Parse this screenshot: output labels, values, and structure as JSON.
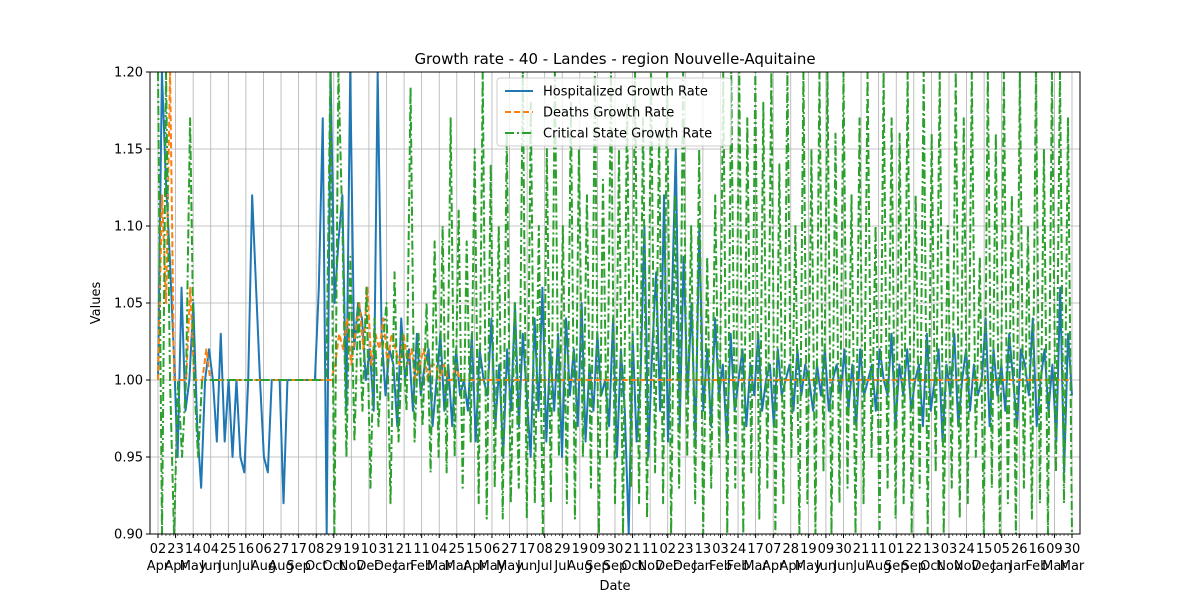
{
  "chart_data": {
    "type": "line",
    "title": "Growth rate - 40 - Landes - region Nouvelle-Aquitaine",
    "xlabel": "Date",
    "ylabel": "Values",
    "ylim": [
      0.9,
      1.2
    ],
    "yticks": [
      "0.90",
      "0.95",
      "1.00",
      "1.05",
      "1.10",
      "1.15",
      "1.20"
    ],
    "grid": true,
    "legend_position": "top-center",
    "x_tick_labels": [
      {
        "day": "02",
        "month": "Apr"
      },
      {
        "day": "23",
        "month": "Apr"
      },
      {
        "day": "14",
        "month": "May"
      },
      {
        "day": "04",
        "month": "Jun"
      },
      {
        "day": "25",
        "month": "Jun"
      },
      {
        "day": "16",
        "month": "Jul"
      },
      {
        "day": "06",
        "month": "Aug"
      },
      {
        "day": "27",
        "month": "Aug"
      },
      {
        "day": "17",
        "month": "Sep"
      },
      {
        "day": "08",
        "month": "Oct"
      },
      {
        "day": "29",
        "month": "Oct"
      },
      {
        "day": "19",
        "month": "Nov"
      },
      {
        "day": "10",
        "month": "Dec"
      },
      {
        "day": "31",
        "month": "Dec"
      },
      {
        "day": "21",
        "month": "Jan"
      },
      {
        "day": "11",
        "month": "Feb"
      },
      {
        "day": "04",
        "month": "Mar"
      },
      {
        "day": "25",
        "month": "Mar"
      },
      {
        "day": "15",
        "month": "Apr"
      },
      {
        "day": "06",
        "month": "May"
      },
      {
        "day": "27",
        "month": "May"
      },
      {
        "day": "17",
        "month": "Jun"
      },
      {
        "day": "08",
        "month": "Jul"
      },
      {
        "day": "29",
        "month": "Jul"
      },
      {
        "day": "19",
        "month": "Aug"
      },
      {
        "day": "09",
        "month": "Sep"
      },
      {
        "day": "30",
        "month": "Sep"
      },
      {
        "day": "21",
        "month": "Oct"
      },
      {
        "day": "11",
        "month": "Nov"
      },
      {
        "day": "02",
        "month": "Dec"
      },
      {
        "day": "23",
        "month": "Dec"
      },
      {
        "day": "13",
        "month": "Jan"
      },
      {
        "day": "03",
        "month": "Feb"
      },
      {
        "day": "24",
        "month": "Feb"
      },
      {
        "day": "17",
        "month": "Mar"
      },
      {
        "day": "07",
        "month": "Apr"
      },
      {
        "day": "28",
        "month": "Apr"
      },
      {
        "day": "19",
        "month": "May"
      },
      {
        "day": "09",
        "month": "Jun"
      },
      {
        "day": "30",
        "month": "Jun"
      },
      {
        "day": "21",
        "month": "Jul"
      },
      {
        "day": "11",
        "month": "Aug"
      },
      {
        "day": "01",
        "month": "Sep"
      },
      {
        "day": "22",
        "month": "Sep"
      },
      {
        "day": "13",
        "month": "Oct"
      },
      {
        "day": "03",
        "month": "Nov"
      },
      {
        "day": "24",
        "month": "Nov"
      },
      {
        "day": "15",
        "month": "Dec"
      },
      {
        "day": "05",
        "month": "Jan"
      },
      {
        "day": "26",
        "month": "Jan"
      },
      {
        "day": "16",
        "month": "Feb"
      },
      {
        "day": "09",
        "month": "Mar"
      },
      {
        "day": "30",
        "month": "Mar"
      }
    ],
    "series": [
      {
        "name": "Hospitalized Growth Rate",
        "color": "#1f77b4",
        "style": "solid",
        "values": [
          1.0,
          1.2,
          1.13,
          1.08,
          1.02,
          0.95,
          1.06,
          0.98,
          1.0,
          1.05,
          0.97,
          0.93,
          1.0,
          1.02,
          1.0,
          0.96,
          1.03,
          0.96,
          1.0,
          0.95,
          1.0,
          0.95,
          0.94,
          1.0,
          1.12,
          1.06,
          1.0,
          0.95,
          0.94,
          1.0,
          1.0,
          1.0,
          0.92,
          1.0,
          1.0,
          1.0,
          1.0,
          1.0,
          1.0,
          1.0,
          1.0,
          1.06,
          1.17,
          0.9,
          1.2,
          1.05,
          1.09,
          1.12,
          0.98,
          1.2,
          1.02,
          1.05,
          1.04,
          1.0,
          1.02,
          0.98,
          1.2,
          1.03,
          0.99,
          1.02,
          1.01,
          0.97,
          1.04,
          1.0,
          1.02,
          0.98,
          1.03,
          0.99,
          1.01,
          1.02,
          0.97,
          1.0,
          1.03,
          0.98,
          1.01,
          0.97,
          1.02,
          0.99,
          1.0,
          0.98,
          1.03,
          0.96,
          1.02,
          1.0,
          0.99,
          1.04,
          0.97,
          1.01,
          0.95,
          1.02,
          0.98,
          1.05,
          0.97,
          1.03,
          0.99,
          0.95,
          1.04,
          0.98,
          1.06,
          0.96,
          1.02,
          0.98,
          1.03,
          0.95,
          1.04,
          0.99,
          1.02,
          0.97,
          1.05,
          0.96,
          1.01,
          0.98,
          1.03,
          0.99,
          1.0,
          0.97,
          1.04,
          0.95,
          1.02,
          0.98,
          0.9,
          1.03,
          0.96,
          1.0,
          1.1,
          0.95,
          1.02,
          1.07,
          0.98,
          1.12,
          0.96,
          1.05,
          1.15,
          0.97,
          1.08,
          0.99,
          1.05,
          0.96,
          1.1,
          0.98,
          1.02,
          0.97,
          1.04,
          0.99,
          1.01,
          0.96,
          1.03,
          0.98,
          1.0,
          1.02,
          0.97,
          1.01,
          0.99,
          1.03,
          0.98,
          1.0,
          1.01,
          0.97,
          1.02,
          0.99,
          1.0,
          1.01,
          0.98,
          1.02,
          0.99,
          1.01,
          1.0,
          0.98,
          1.01,
          0.99,
          1.02,
          0.98,
          1.0,
          1.01,
          0.99,
          1.02,
          0.98,
          1.01,
          0.97,
          1.02,
          0.99,
          1.0,
          1.01,
          0.98,
          1.02,
          1.0,
          0.99,
          1.03,
          0.97,
          1.01,
          0.99,
          1.02,
          0.98,
          1.0,
          1.01,
          0.97,
          1.03,
          0.98,
          1.0,
          1.02,
          0.96,
          1.01,
          0.99,
          1.03,
          0.97,
          1.0,
          1.02,
          0.98,
          1.01,
          0.99,
          1.0,
          1.04,
          0.97,
          1.02,
          0.99,
          1.01,
          0.98,
          1.03,
          1.0,
          0.97,
          1.02,
          1.01,
          0.99,
          1.04,
          0.97,
          1.0,
          1.02,
          0.98,
          1.01,
          0.96,
          1.06,
          0.94,
          1.03,
          0.99
        ],
        "note_x_span": "same dates as x_tick_labels, evenly spaced"
      },
      {
        "name": "Deaths Growth Rate",
        "color": "#ff7f0e",
        "style": "dashed",
        "values": [
          1.0,
          1.12,
          1.05,
          1.2,
          1.0,
          1.0,
          1.0,
          1.0,
          1.06,
          1.0,
          1.0,
          1.0,
          1.02,
          1.0,
          1.0,
          1.0,
          1.0,
          1.0,
          1.0,
          1.0,
          1.0,
          1.0,
          1.0,
          1.0,
          1.0,
          1.0,
          1.0,
          1.0,
          1.0,
          1.0,
          1.0,
          1.0,
          1.0,
          1.0,
          1.0,
          1.0,
          1.0,
          1.0,
          1.0,
          1.0,
          1.0,
          1.0,
          1.0,
          1.0,
          1.01,
          1.03,
          1.02,
          1.04,
          1.01,
          1.03,
          1.05,
          1.02,
          1.06,
          1.01,
          1.03,
          1.02,
          1.04,
          1.01,
          1.03,
          1.02,
          1.01,
          1.03,
          1.01,
          1.02,
          1.0,
          1.01,
          1.02,
          1.0,
          1.01,
          1.01,
          1.0,
          1.01,
          1.0,
          1.0,
          1.01,
          1.0,
          1.0,
          1.0,
          1.0,
          1.0,
          1.0,
          1.0,
          1.0,
          1.0,
          1.0,
          1.0,
          1.0,
          1.0,
          1.0,
          1.0,
          1.0,
          1.0,
          1.0,
          1.0,
          1.0,
          1.0,
          1.0,
          1.0,
          1.0,
          1.0,
          1.0,
          1.0,
          1.0,
          1.0,
          1.0,
          1.0,
          1.0,
          1.0,
          1.0,
          1.0,
          1.0,
          1.0,
          1.0,
          1.0,
          1.0,
          1.0,
          1.0,
          1.0,
          1.0,
          1.0,
          1.0,
          1.0,
          1.0,
          1.0,
          1.0,
          1.0,
          1.0,
          1.0,
          1.0,
          1.0,
          1.0,
          1.0,
          1.0,
          1.0,
          1.0,
          1.0,
          1.0,
          1.0,
          1.0,
          1.0,
          1.0,
          1.0,
          1.0,
          1.0,
          1.0,
          1.0,
          1.0,
          1.0,
          1.0,
          1.0,
          1.0,
          1.0,
          1.0,
          1.0,
          1.0,
          1.0,
          1.0,
          1.0,
          1.0,
          1.0,
          1.0,
          1.0,
          1.0,
          1.0,
          1.0,
          1.0,
          1.0,
          1.0,
          1.0,
          1.0,
          1.0,
          1.0,
          1.0,
          1.0,
          1.0,
          1.0,
          1.0,
          1.0,
          1.0,
          1.0,
          1.0,
          1.0,
          1.0,
          1.0,
          1.0,
          1.0,
          1.0,
          1.0,
          1.0,
          1.0,
          1.0,
          1.0,
          1.0,
          1.0,
          1.0,
          1.0,
          1.0,
          1.0,
          1.0,
          1.0,
          1.0,
          1.0,
          1.0,
          1.0,
          1.0,
          1.0,
          1.0,
          1.0,
          1.0,
          1.0,
          1.0,
          1.0,
          1.0,
          1.0,
          1.0,
          1.0,
          1.0,
          1.0,
          1.0,
          1.0,
          1.0,
          1.0,
          1.0,
          1.0,
          1.0,
          1.0,
          1.0,
          1.0
        ]
      },
      {
        "name": "Critical State Growth Rate",
        "color": "#2ca02c",
        "style": "dashdot",
        "values": [
          1.2,
          0.9,
          1.2,
          1.0,
          0.9,
          1.0,
          0.95,
          1.0,
          1.17,
          1.0,
          0.95,
          1.0,
          1.0,
          1.0,
          1.0,
          1.0,
          1.0,
          1.0,
          1.0,
          1.0,
          1.0,
          1.0,
          1.0,
          1.0,
          1.0,
          1.0,
          1.0,
          1.0,
          1.0,
          1.0,
          1.0,
          1.0,
          1.0,
          1.0,
          1.0,
          1.0,
          1.0,
          1.0,
          1.0,
          1.0,
          1.0,
          1.0,
          1.0,
          1.2,
          0.9,
          1.2,
          1.1,
          0.95,
          1.08,
          0.96,
          1.05,
          0.98,
          1.06,
          0.93,
          1.04,
          0.97,
          1.02,
          1.05,
          0.92,
          1.07,
          0.96,
          1.03,
          0.98,
          1.19,
          0.96,
          1.03,
          0.97,
          1.05,
          0.94,
          1.09,
          0.95,
          1.1,
          0.94,
          1.17,
          0.95,
          1.11,
          0.93,
          1.09,
          0.96,
          1.15,
          0.92,
          1.2,
          0.91,
          1.14,
          0.93,
          1.1,
          0.91,
          1.16,
          0.92,
          1.05,
          0.93,
          1.2,
          0.91,
          1.18,
          0.92,
          1.1,
          0.9,
          1.15,
          0.92,
          1.2,
          0.95,
          1.1,
          0.92,
          1.18,
          0.91,
          1.15,
          0.95,
          1.12,
          0.93,
          1.2,
          0.9,
          1.13,
          0.95,
          1.2,
          0.92,
          1.15,
          0.9,
          1.18,
          0.93,
          1.2,
          0.92,
          1.17,
          0.91,
          1.2,
          0.94,
          1.16,
          0.92,
          1.2,
          0.9,
          1.12,
          0.93,
          1.2,
          0.95,
          1.1,
          0.92,
          1.15,
          0.9,
          1.08,
          0.93,
          1.12,
          0.95,
          1.2,
          0.9,
          1.2,
          0.93,
          1.2,
          0.9,
          1.17,
          0.94,
          1.2,
          0.91,
          1.18,
          0.93,
          1.2,
          0.9,
          1.14,
          0.92,
          1.2,
          0.95,
          1.1,
          0.9,
          1.2,
          0.92,
          1.15,
          0.9,
          1.2,
          0.94,
          1.2,
          0.9,
          1.16,
          0.92,
          1.2,
          0.93,
          1.12,
          0.9,
          1.17,
          0.92,
          1.2,
          0.95,
          1.1,
          0.9,
          1.2,
          0.93,
          1.17,
          0.91,
          1.16,
          0.92,
          1.2,
          0.9,
          1.12,
          0.93,
          1.2,
          0.9,
          1.16,
          0.94,
          1.2,
          0.9,
          1.1,
          0.93,
          1.2,
          0.91,
          1.17,
          0.92,
          1.2,
          0.95,
          1.08,
          0.9,
          1.2,
          0.93,
          1.16,
          0.9,
          1.2,
          0.92,
          1.12,
          0.9,
          1.2,
          0.93,
          1.1,
          0.91,
          1.2,
          0.92,
          1.15,
          0.9,
          1.2,
          0.94,
          1.2,
          0.92,
          1.17,
          0.9
        ]
      }
    ]
  }
}
